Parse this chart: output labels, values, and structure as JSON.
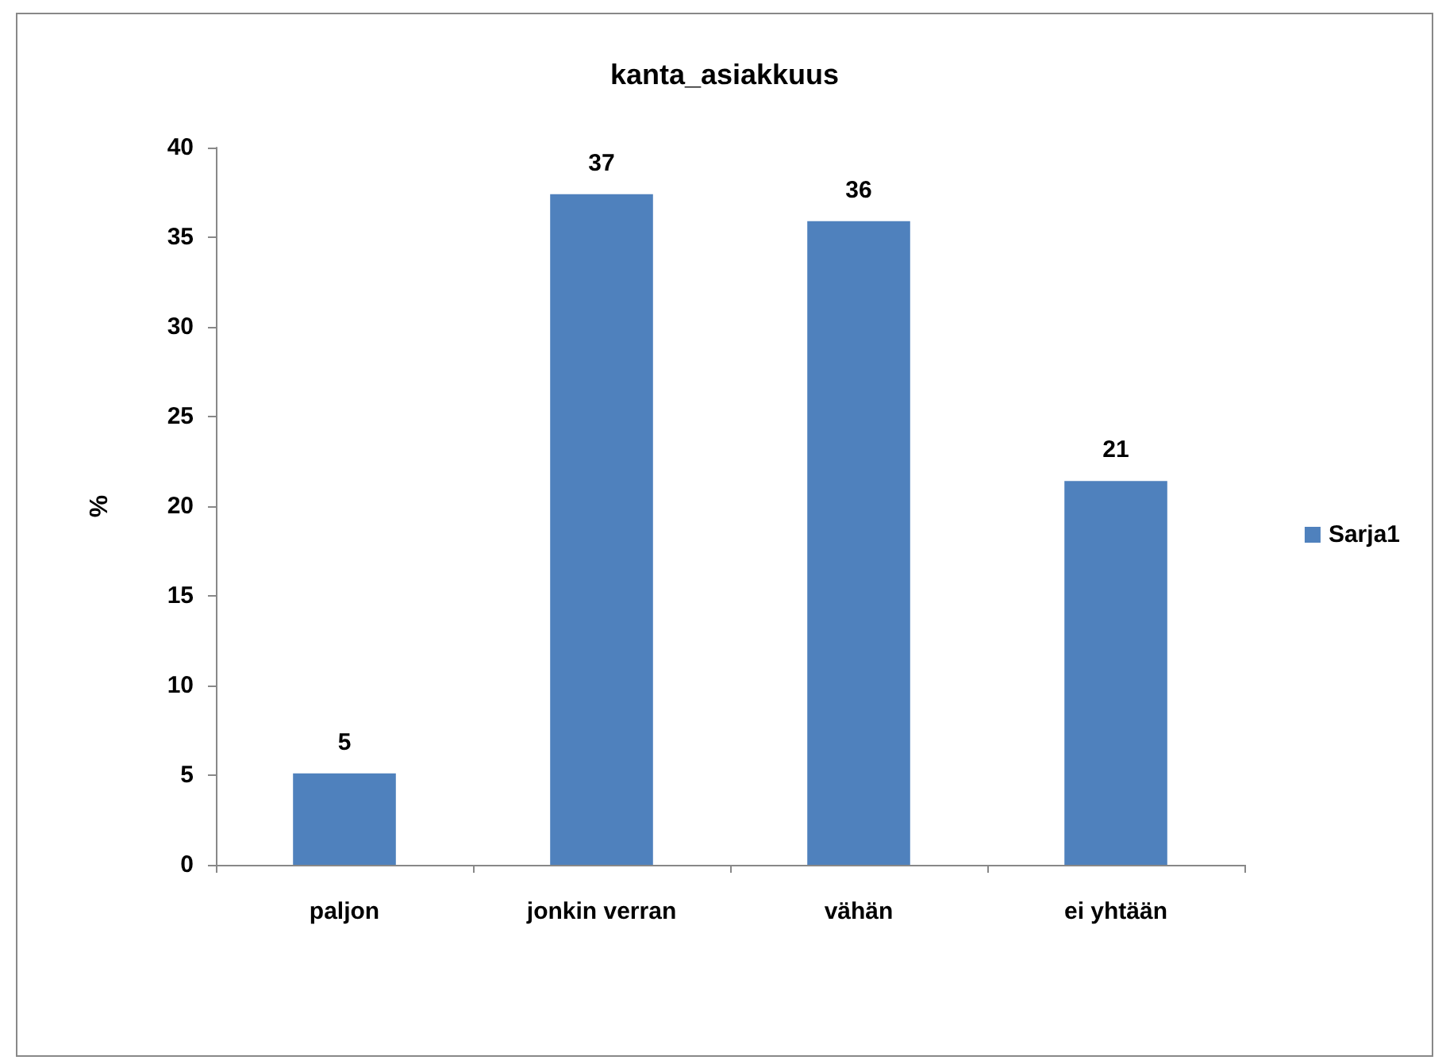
{
  "chart_data": {
    "type": "bar",
    "title": "kanta_asiakkuus",
    "ylabel": "%",
    "categories": [
      "paljon",
      "jonkin verran",
      "vähän",
      "ei yhtään"
    ],
    "series": [
      {
        "name": "Sarja1",
        "color": "#4f81bd",
        "values": [
          5.1,
          37.4,
          35.9,
          21.4
        ],
        "value_labels": [
          "5",
          "37",
          "36",
          "21"
        ]
      }
    ],
    "ylim": [
      0,
      40
    ],
    "yticks": [
      0,
      5,
      10,
      15,
      20,
      25,
      30,
      35,
      40
    ],
    "grid": false,
    "legend": "right"
  }
}
